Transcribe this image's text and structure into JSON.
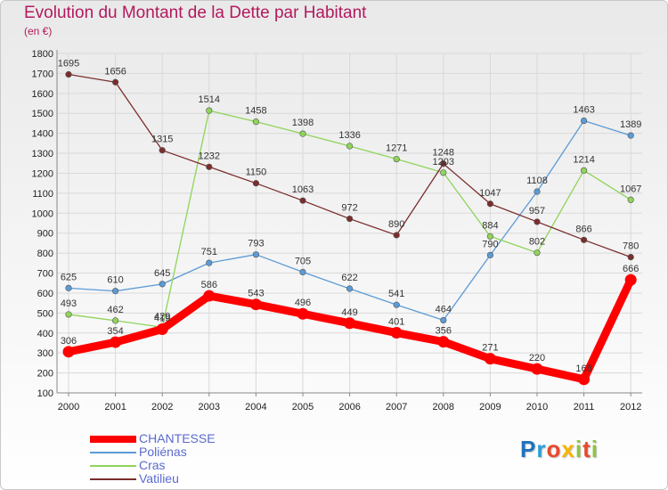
{
  "header": {
    "title": "Evolution du Montant de la Dette par Habitant",
    "subtitle": "(en €)"
  },
  "colors": {
    "title": "#b3195e",
    "legend_text": "#5b6ad0",
    "axis": "#888888",
    "grid": "#d9d9d9"
  },
  "logo": {
    "letters": [
      "P",
      "r",
      "o",
      "x",
      "i",
      "t",
      "i"
    ],
    "colors": [
      "#1e73be",
      "#2a9fd8",
      "#e8492c",
      "#f7b500",
      "#8dc63f",
      "#e8492c",
      "#8dc63f"
    ]
  },
  "chart_data": {
    "type": "line",
    "title": "Evolution du Montant de la Dette par Habitant",
    "subtitle": "(en €)",
    "xlabel": "",
    "ylabel": "",
    "x": [
      "2000",
      "2001",
      "2002",
      "2003",
      "2004",
      "2005",
      "2006",
      "2007",
      "2008",
      "2009",
      "2010",
      "2011",
      "2012"
    ],
    "ylim": [
      100,
      1800
    ],
    "yticks": [
      100,
      200,
      300,
      400,
      500,
      600,
      700,
      800,
      900,
      1000,
      1100,
      1200,
      1300,
      1400,
      1500,
      1600,
      1700,
      1800
    ],
    "grid": true,
    "legend_position": "bottom-left",
    "series": [
      {
        "name": "CHANTESSE",
        "color": "#ff0000",
        "bold": true,
        "values": [
          306,
          354,
          419,
          586,
          543,
          496,
          449,
          401,
          356,
          271,
          220,
          168,
          666
        ]
      },
      {
        "name": "Poliénas",
        "color": "#5b9bd5",
        "bold": false,
        "values": [
          625,
          610,
          645,
          751,
          793,
          705,
          622,
          541,
          464,
          790,
          1108,
          1463,
          1389
        ]
      },
      {
        "name": "Cras",
        "color": "#8fd45a",
        "bold": false,
        "values": [
          493,
          462,
          429,
          1514,
          1458,
          1398,
          1336,
          1271,
          1203,
          884,
          802,
          1214,
          1067
        ]
      },
      {
        "name": "Vatilieu",
        "color": "#7b2d2d",
        "bold": false,
        "values": [
          1695,
          1656,
          1315,
          1232,
          1150,
          1063,
          972,
          890,
          1248,
          1047,
          957,
          866,
          780
        ]
      }
    ]
  }
}
